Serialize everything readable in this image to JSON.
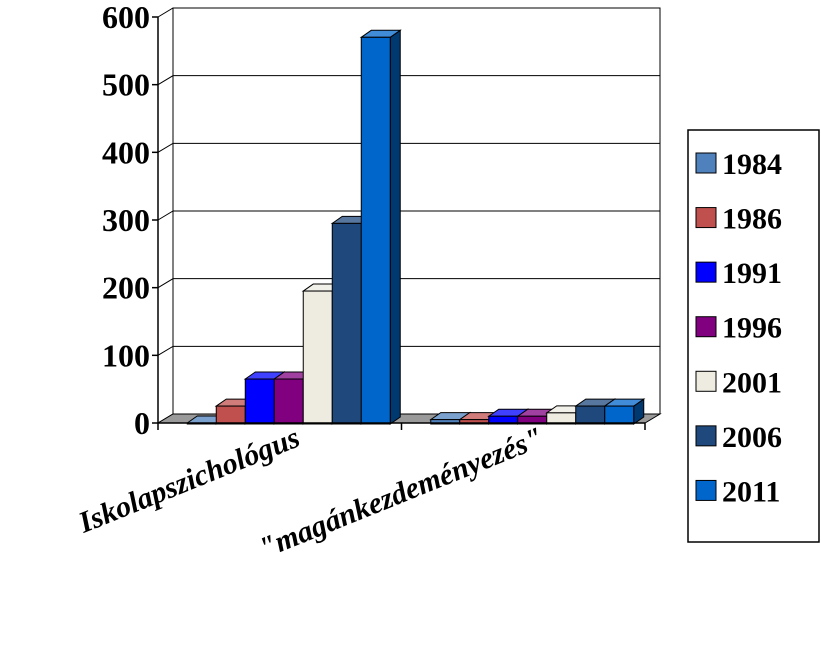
{
  "chart_data": {
    "type": "bar",
    "style": "3d-clustered-column",
    "categories": [
      "Iskolapszichológus",
      "\"magánkezdeményezés\""
    ],
    "series": [
      {
        "name": "1984",
        "color": "#4F81BD",
        "values": [
          0,
          5
        ]
      },
      {
        "name": "1986",
        "color": "#C0504D",
        "values": [
          25,
          5
        ]
      },
      {
        "name": "1991",
        "color": "#0000FF",
        "values": [
          65,
          10
        ]
      },
      {
        "name": "1996",
        "color": "#800080",
        "values": [
          65,
          10
        ]
      },
      {
        "name": "2001",
        "color": "#EEECE1",
        "values": [
          195,
          15
        ]
      },
      {
        "name": "2006",
        "color": "#1F497D",
        "values": [
          295,
          25
        ]
      },
      {
        "name": "2011",
        "color": "#0066CC",
        "values": [
          570,
          25
        ]
      }
    ],
    "ylim": [
      0,
      600
    ],
    "yticks": [
      "0",
      "100",
      "200",
      "300",
      "400",
      "500",
      "600"
    ],
    "title": "",
    "xlabel": "",
    "ylabel": "",
    "grid": true,
    "legend": "right"
  }
}
